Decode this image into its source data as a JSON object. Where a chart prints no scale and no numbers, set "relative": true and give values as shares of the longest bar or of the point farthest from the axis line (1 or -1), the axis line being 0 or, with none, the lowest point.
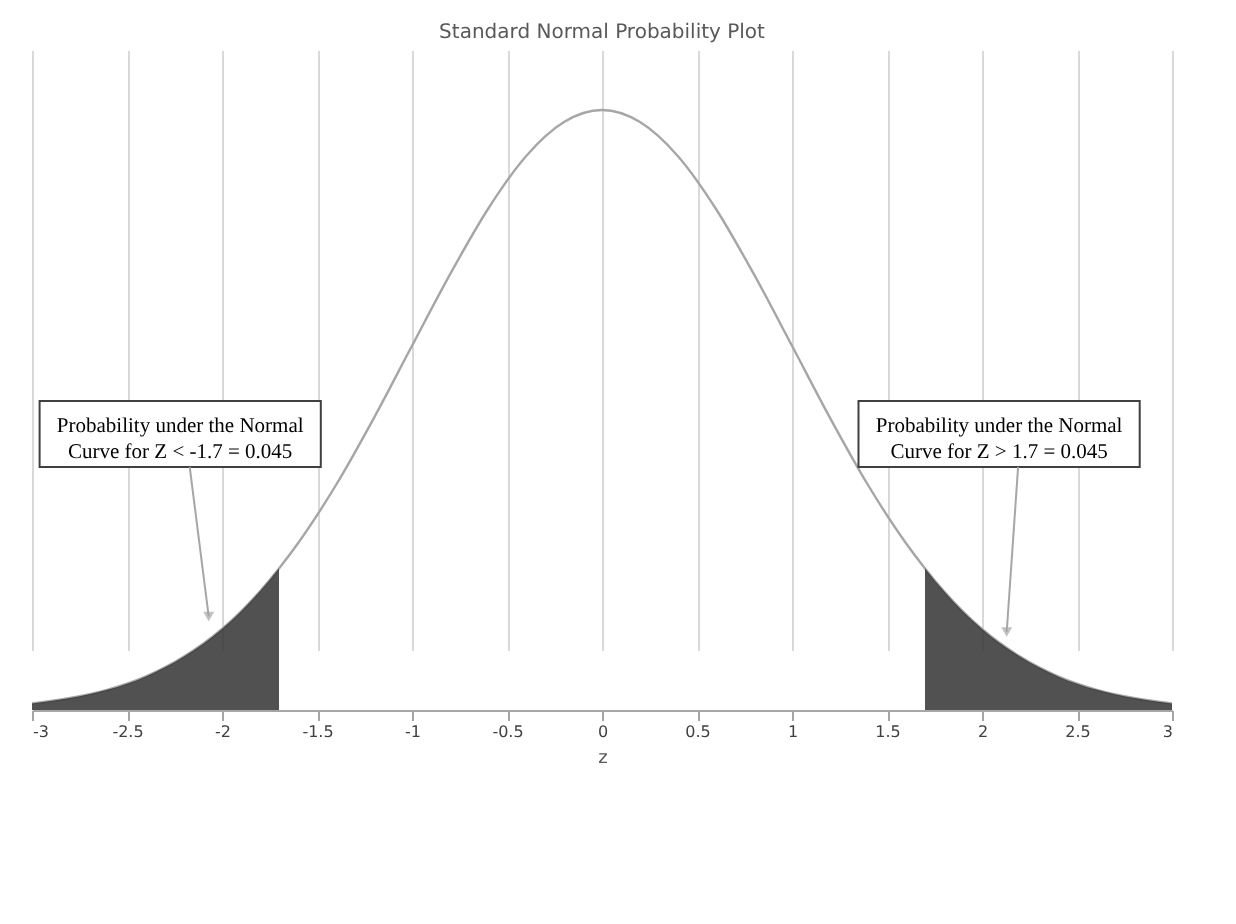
{
  "chart_data": {
    "type": "line",
    "title": "Standard Normal Probability Plot",
    "xlabel": "z",
    "relative": true,
    "grid": "x",
    "xlim": [
      -3,
      3
    ],
    "xticks": [
      -3,
      -2.5,
      -2,
      -1.5,
      -1,
      -0.5,
      0,
      0.5,
      1,
      1.5,
      2,
      2.5,
      3
    ],
    "series": [
      {
        "color": "#a6a6a6",
        "x": [
          -3,
          -2.8,
          -2.6,
          -2.4,
          -2.2,
          -2,
          -1.8,
          -1.7,
          -1.6,
          -1.4,
          -1.2,
          -1,
          -0.8,
          -0.6,
          -0.4,
          -0.2,
          0,
          0.2,
          0.4,
          0.6,
          0.8,
          1,
          1.2,
          1.4,
          1.6,
          1.7,
          1.8,
          2,
          2.2,
          2.4,
          2.6,
          2.8,
          3
        ],
        "values": [
          0.011,
          0.02,
          0.034,
          0.056,
          0.089,
          0.135,
          0.198,
          0.236,
          0.278,
          0.375,
          0.487,
          0.607,
          0.726,
          0.835,
          0.923,
          0.98,
          1,
          0.98,
          0.923,
          0.835,
          0.726,
          0.607,
          0.487,
          0.375,
          0.278,
          0.236,
          0.198,
          0.135,
          0.089,
          0.056,
          0.034,
          0.02,
          0.011
        ]
      },
      {
        "type": "area",
        "color": "#333333",
        "x": [
          -3,
          -2.8,
          -2.6,
          -2.4,
          -2.2,
          -2,
          -1.8,
          -1.7
        ],
        "values": [
          0.011,
          0.02,
          0.034,
          0.056,
          0.089,
          0.135,
          0.198,
          0.236
        ]
      },
      {
        "type": "area",
        "color": "#333333",
        "x": [
          1.7,
          1.8,
          2,
          2.2,
          2.4,
          2.6,
          2.8,
          3
        ],
        "values": [
          0.236,
          0.198,
          0.135,
          0.089,
          0.056,
          0.034,
          0.02,
          0.011
        ]
      }
    ],
    "annotations": [
      {
        "text": "Probability under the Normal Curve for Z < -1.7 = 0.045",
        "x": -2.07,
        "y": 0.156
      },
      {
        "text": "Probability under the Normal Curve for Z > 1.7 = 0.045",
        "x": 2.13,
        "y": 0.13
      }
    ]
  }
}
